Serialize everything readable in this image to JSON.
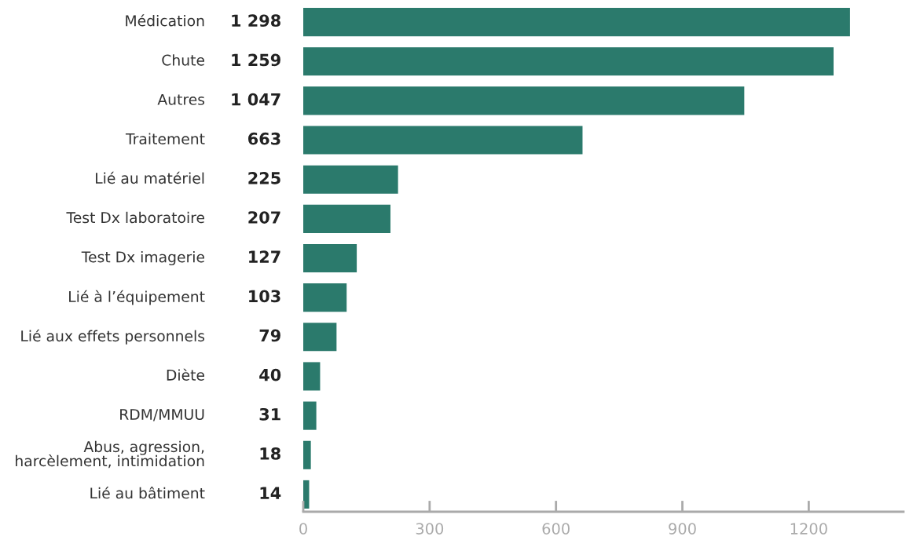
{
  "chart_data": {
    "type": "bar",
    "orientation": "horizontal",
    "categories": [
      "Médication",
      "Chute",
      "Autres",
      "Traitement",
      "Lié au matériel",
      "Test Dx laboratoire",
      "Test Dx imagerie",
      "Lié à l’équipement",
      "Lié aux effets personnels",
      "Diète",
      "RDM/MMUU",
      "Abus, agression,\nharcèlement, intimidation",
      "Lié au bâtiment"
    ],
    "values": [
      1298,
      1259,
      1047,
      663,
      225,
      207,
      127,
      103,
      79,
      40,
      31,
      18,
      14
    ],
    "value_labels": [
      "1 298",
      "1 259",
      "1 047",
      "663",
      "225",
      "207",
      "127",
      "103",
      "79",
      "40",
      "31",
      "18",
      "14"
    ],
    "color": "#2b7a6c",
    "xlim": [
      0,
      1425
    ],
    "xticks": [
      0,
      300,
      600,
      900,
      1200
    ],
    "grid": false,
    "legend": false
  }
}
